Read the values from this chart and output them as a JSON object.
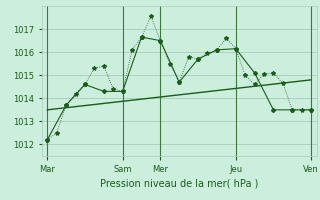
{
  "bg_color": "#cceedd",
  "grid_color": "#aaccbb",
  "line_color": "#1a5c1a",
  "tick_label_color": "#1a5c1a",
  "xlabel": "Pression niveau de la mer( hPa )",
  "ylim": [
    1011.5,
    1018.0
  ],
  "yticks": [
    1012,
    1013,
    1014,
    1015,
    1016,
    1017
  ],
  "xtick_labels": [
    "Mar",
    "Sam",
    "Mer",
    "Jeu",
    "Ven"
  ],
  "xtick_positions": [
    0.0,
    2.0,
    3.0,
    5.0,
    7.0
  ],
  "vline_positions": [
    0.0,
    2.0,
    3.0,
    5.0,
    7.0
  ],
  "series_dotted_x": [
    0.0,
    0.25,
    0.5,
    0.75,
    1.0,
    1.25,
    1.5,
    1.75,
    2.0,
    2.25,
    2.5,
    2.75,
    3.0,
    3.25,
    3.5,
    3.75,
    4.0,
    4.25,
    4.5,
    4.75,
    5.0,
    5.25,
    5.5,
    5.75,
    6.0,
    6.25,
    6.5,
    6.75,
    7.0
  ],
  "series_dotted_y": [
    1012.2,
    1012.5,
    1013.7,
    1014.2,
    1014.6,
    1015.3,
    1015.4,
    1014.4,
    1014.3,
    1016.1,
    1016.65,
    1017.55,
    1016.5,
    1015.5,
    1014.7,
    1015.8,
    1015.7,
    1015.95,
    1016.1,
    1016.6,
    1016.15,
    1015.0,
    1014.6,
    1015.05,
    1015.1,
    1014.65,
    1013.5,
    1013.5,
    1013.5
  ],
  "series_solid_x": [
    0.0,
    0.5,
    1.0,
    1.5,
    2.0,
    2.5,
    3.0,
    3.5,
    4.0,
    4.5,
    5.0,
    5.5,
    6.0,
    6.5,
    7.0
  ],
  "series_solid_y": [
    1012.2,
    1013.7,
    1014.6,
    1014.3,
    1014.3,
    1016.65,
    1016.5,
    1014.7,
    1015.7,
    1016.1,
    1016.15,
    1015.1,
    1013.5,
    1013.5,
    1013.5
  ],
  "trend_x": [
    0.0,
    7.0
  ],
  "trend_y": [
    1013.5,
    1014.8
  ]
}
